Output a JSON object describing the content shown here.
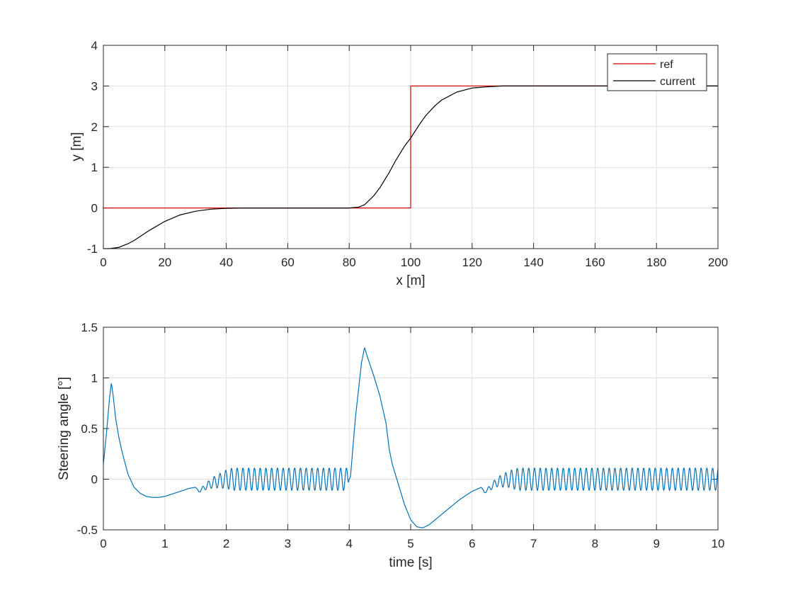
{
  "chart_data": [
    {
      "type": "line",
      "id": "trajectory",
      "title": "",
      "xlabel": "x [m]",
      "ylabel": "y [m]",
      "xlim": [
        0,
        200
      ],
      "ylim": [
        -1,
        4
      ],
      "xticks": [
        0,
        20,
        40,
        60,
        80,
        100,
        120,
        140,
        160,
        180,
        200
      ],
      "yticks": [
        -1,
        0,
        1,
        2,
        3,
        4
      ],
      "grid": true,
      "legend": "top-right",
      "series": [
        {
          "name": "ref",
          "color": "#d40000",
          "x": [
            0,
            100,
            100,
            200
          ],
          "y": [
            0,
            0,
            3,
            3
          ]
        },
        {
          "name": "current",
          "color": "#000000",
          "x": [
            0,
            2,
            5,
            8,
            10,
            15,
            20,
            25,
            30,
            35,
            40,
            45,
            50,
            60,
            70,
            80,
            83,
            85,
            88,
            90,
            93,
            95,
            98,
            100,
            103,
            105,
            108,
            110,
            115,
            120,
            125,
            130,
            140,
            160,
            180,
            200
          ],
          "y": [
            -1.0,
            -1.0,
            -0.97,
            -0.88,
            -0.8,
            -0.55,
            -0.33,
            -0.17,
            -0.08,
            -0.03,
            -0.01,
            0.0,
            0.0,
            0.0,
            0.0,
            0.0,
            0.02,
            0.08,
            0.3,
            0.5,
            0.87,
            1.15,
            1.52,
            1.72,
            2.07,
            2.28,
            2.52,
            2.65,
            2.85,
            2.95,
            2.98,
            3.0,
            3.0,
            3.0,
            3.0,
            3.0
          ]
        }
      ]
    },
    {
      "type": "line",
      "id": "steering",
      "title": "",
      "xlabel": "time [s]",
      "ylabel": "Steering angle [°]",
      "xlim": [
        0,
        10
      ],
      "ylim": [
        -0.5,
        1.5
      ],
      "xticks": [
        0,
        1,
        2,
        3,
        4,
        5,
        6,
        7,
        8,
        9,
        10
      ],
      "yticks": [
        -0.5,
        0,
        0.5,
        1,
        1.5
      ],
      "grid": true,
      "series": [
        {
          "name": "steering",
          "color": "#0072bd",
          "t": [
            0,
            0.05,
            0.1,
            0.13,
            0.16,
            0.2,
            0.25,
            0.3,
            0.4,
            0.5,
            0.6,
            0.7,
            0.8,
            0.9,
            1.0,
            1.1,
            1.2,
            1.3,
            1.4,
            1.5,
            1.55,
            1.6,
            1.7,
            1.8,
            2.0,
            2.3,
            2.6,
            3.0,
            3.5,
            4.0,
            4.02,
            4.1,
            4.2,
            4.25,
            4.3,
            4.4,
            4.5,
            4.6,
            4.65,
            4.7,
            4.8,
            4.9,
            5.0,
            5.1,
            5.2,
            5.3,
            5.4,
            5.6,
            5.8,
            6.0,
            6.15,
            6.2,
            6.3,
            6.4,
            6.6,
            6.8,
            7.0,
            8.0,
            9.0,
            10.0
          ],
          "v": [
            0.15,
            0.45,
            0.8,
            0.95,
            0.82,
            0.6,
            0.42,
            0.28,
            0.05,
            -0.08,
            -0.14,
            -0.17,
            -0.18,
            -0.18,
            -0.17,
            -0.15,
            -0.13,
            -0.11,
            -0.09,
            -0.08,
            -0.12,
            -0.1,
            -0.06,
            -0.03,
            0.0,
            0.0,
            0.0,
            0.0,
            0.0,
            0.0,
            0.02,
            0.6,
            1.15,
            1.3,
            1.2,
            1.02,
            0.82,
            0.55,
            0.3,
            0.15,
            -0.05,
            -0.25,
            -0.4,
            -0.47,
            -0.48,
            -0.45,
            -0.4,
            -0.3,
            -0.2,
            -0.12,
            -0.08,
            -0.13,
            -0.08,
            -0.03,
            0.0,
            0.0,
            0.0,
            0.0,
            0.0,
            0.0
          ],
          "oscillation": {
            "amplitude": 0.11,
            "period": 0.0935,
            "windows": [
              [
                1.5,
                4.0,
                0.03
              ],
              [
                6.15,
                10.0,
                0.03
              ]
            ]
          }
        }
      ]
    }
  ]
}
